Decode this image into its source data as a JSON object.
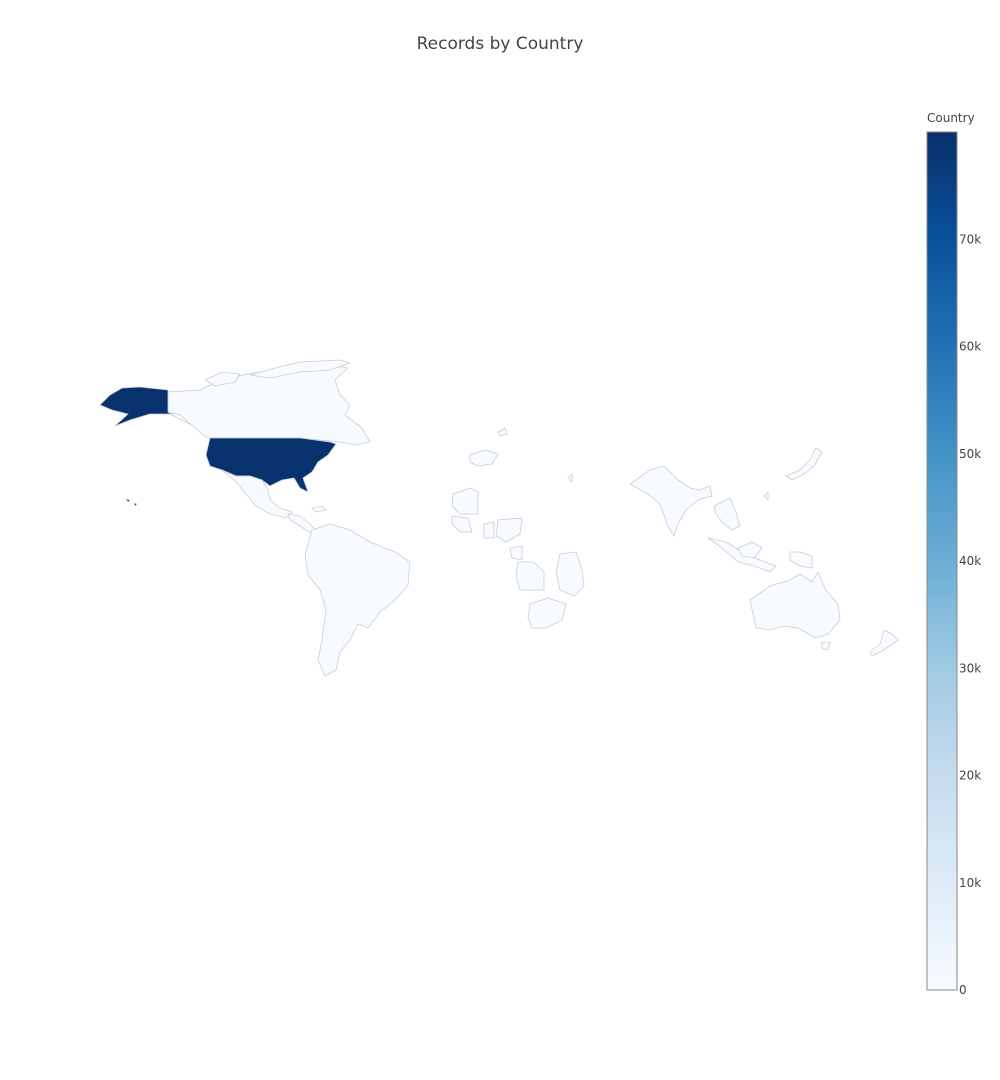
{
  "chart_data": {
    "type": "choropleth",
    "title": "Records by Country",
    "colorbar": {
      "title": "Country",
      "range": [
        0,
        80000
      ],
      "ticks": [
        {
          "value": 0,
          "label": "0"
        },
        {
          "value": 10000,
          "label": "10k"
        },
        {
          "value": 20000,
          "label": "20k"
        },
        {
          "value": 30000,
          "label": "30k"
        },
        {
          "value": 40000,
          "label": "40k"
        },
        {
          "value": 50000,
          "label": "50k"
        },
        {
          "value": 60000,
          "label": "60k"
        },
        {
          "value": 70000,
          "label": "70k"
        }
      ],
      "colorscale": [
        "#f7fbff",
        "#deebf7",
        "#c6dbef",
        "#9ecae1",
        "#6baed6",
        "#4292c6",
        "#2171b5",
        "#08519c",
        "#08306b"
      ]
    },
    "regions": [
      {
        "name": "united-states",
        "value": 79500
      },
      {
        "name": "alaska",
        "value": 79500
      },
      {
        "name": "hawaii",
        "value": 79500
      },
      {
        "name": "canada",
        "value": 0
      },
      {
        "name": "greenland",
        "value": 0
      },
      {
        "name": "mexico",
        "value": 0
      },
      {
        "name": "central-america",
        "value": 0
      },
      {
        "name": "south-america",
        "value": 0
      },
      {
        "name": "west-africa",
        "value": 0
      },
      {
        "name": "north-africa",
        "value": 0
      },
      {
        "name": "central-africa",
        "value": 0
      },
      {
        "name": "south-africa",
        "value": 0
      },
      {
        "name": "europe-iceland",
        "value": 0
      },
      {
        "name": "india",
        "value": 0
      },
      {
        "name": "southeast-asia",
        "value": 0
      },
      {
        "name": "indonesia",
        "value": 0
      },
      {
        "name": "japan",
        "value": 0
      },
      {
        "name": "australia",
        "value": 0
      },
      {
        "name": "new-zealand",
        "value": 0
      }
    ]
  }
}
